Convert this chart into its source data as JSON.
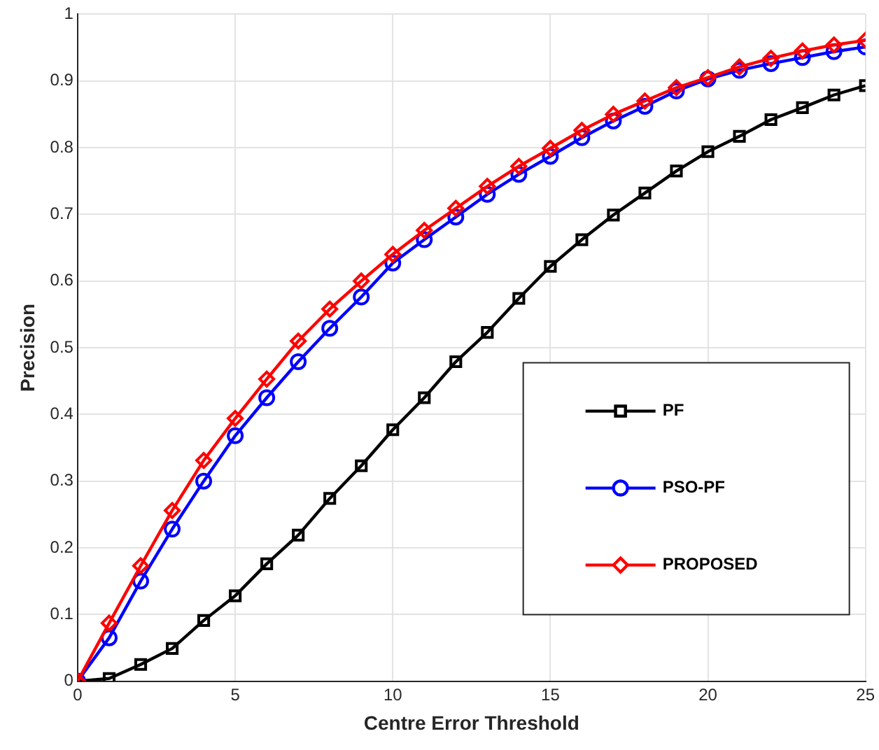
{
  "chart_data": {
    "type": "line",
    "xlabel": "Centre Error Threshold",
    "ylabel": "Precision",
    "x": [
      0,
      1,
      2,
      3,
      4,
      5,
      6,
      7,
      8,
      9,
      10,
      11,
      12,
      13,
      14,
      15,
      16,
      17,
      18,
      19,
      20,
      21,
      22,
      23,
      24,
      25
    ],
    "xlim": [
      0,
      25
    ],
    "xticks": [
      0,
      5,
      10,
      15,
      20,
      25
    ],
    "ylim": [
      0,
      1
    ],
    "yticks": [
      0,
      0.1,
      0.2,
      0.3,
      0.4,
      0.5,
      0.6,
      0.7,
      0.8,
      0.9,
      1
    ],
    "grid": true,
    "legend": "bottom right",
    "line_style": "solid",
    "series": [
      {
        "name": "PF",
        "color": "#000000",
        "marker": "square",
        "values": [
          0,
          0.004,
          0.025,
          0.049,
          0.091,
          0.128,
          0.176,
          0.219,
          0.274,
          0.323,
          0.377,
          0.425,
          0.479,
          0.523,
          0.574,
          0.622,
          0.662,
          0.699,
          0.732,
          0.765,
          0.794,
          0.817,
          0.842,
          0.86,
          0.879,
          0.893
        ]
      },
      {
        "name": "PSO-PF",
        "color": "#0000ff",
        "marker": "circle",
        "values": [
          0,
          0.065,
          0.15,
          0.228,
          0.3,
          0.368,
          0.425,
          0.479,
          0.529,
          0.576,
          0.627,
          0.662,
          0.696,
          0.73,
          0.76,
          0.787,
          0.815,
          0.84,
          0.862,
          0.885,
          0.903,
          0.916,
          0.926,
          0.935,
          0.944,
          0.951
        ]
      },
      {
        "name": "PROPOSED",
        "color": "#ff0000",
        "marker": "diamond",
        "values": [
          0,
          0.087,
          0.173,
          0.256,
          0.331,
          0.394,
          0.453,
          0.51,
          0.558,
          0.6,
          0.64,
          0.676,
          0.709,
          0.742,
          0.772,
          0.799,
          0.826,
          0.85,
          0.87,
          0.89,
          0.905,
          0.921,
          0.934,
          0.945,
          0.954,
          0.961
        ]
      }
    ]
  }
}
